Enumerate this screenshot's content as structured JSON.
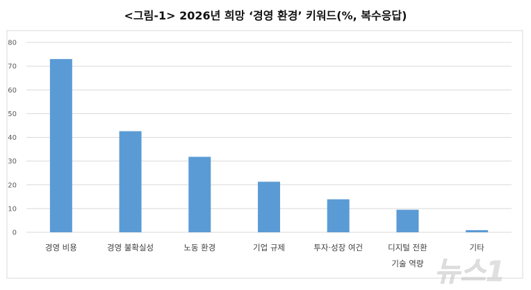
{
  "chart_data": {
    "type": "bar",
    "title": "<그림-1> 2026년 희망 ‘경영 환경’ 키워드(%, 복수응답)",
    "xlabel": "",
    "ylabel": "",
    "ylim": [
      0,
      80
    ],
    "yticks": [
      0,
      10,
      20,
      30,
      40,
      50,
      60,
      70,
      80
    ],
    "grid": true,
    "legend": "none",
    "categories": [
      [
        "경영 비용"
      ],
      [
        "경영 불확실성"
      ],
      [
        "노동 환경"
      ],
      [
        "기업 규제"
      ],
      [
        "투자·성장 여건"
      ],
      [
        "디지털 전환",
        "기술 역량"
      ],
      [
        "기타"
      ]
    ],
    "values": [
      73.0,
      42.6,
      31.8,
      21.3,
      13.9,
      9.5,
      0.9
    ],
    "bar_color": "#5b9bd5"
  },
  "watermark": "뉴스1"
}
